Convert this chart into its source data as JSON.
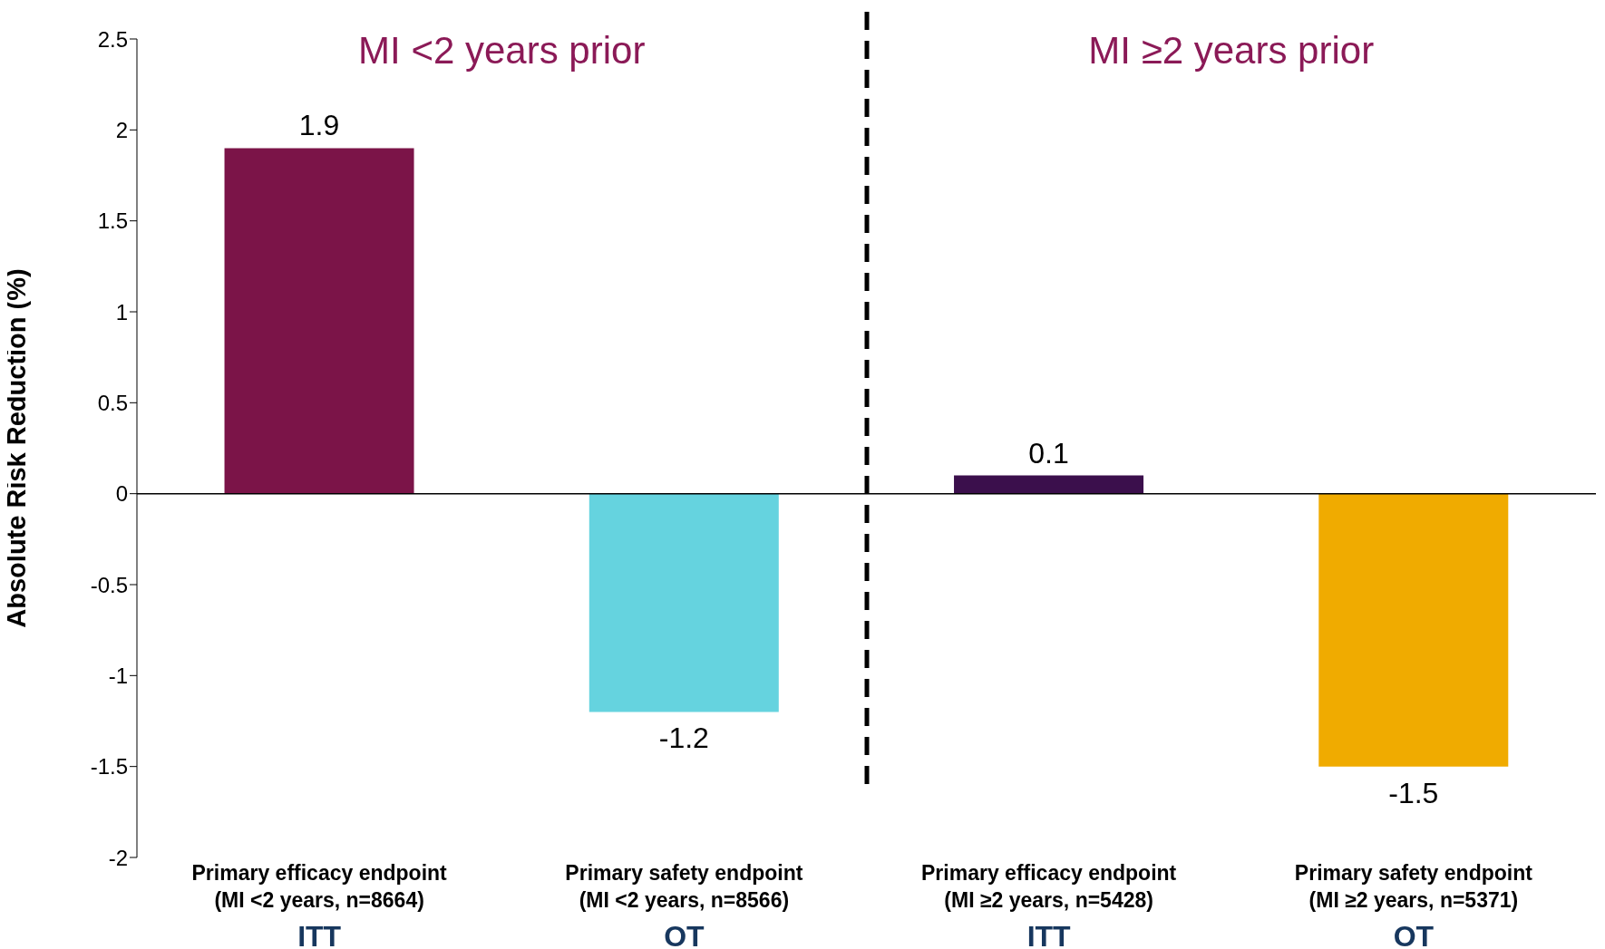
{
  "chart_data": {
    "type": "bar",
    "ylabel": "Absolute Risk Reduction (%)",
    "categories": [
      "Primary efficacy endpoint\n(MI <2 years, n=8664)\nITT",
      "Primary safety endpoint\n(MI <2 years, n=8566)\nOT",
      "Primary efficacy endpoint\n(MI ≥2 years, n=5428)\nITT",
      "Primary safety endpoint\n(MI ≥2 years, n=5371)\nOT"
    ],
    "values": [
      1.9,
      -1.2,
      0.1,
      -1.5
    ],
    "colors": [
      "#7b1448",
      "#65d3df",
      "#3b0f4c",
      "#f0ab00"
    ],
    "ylim": [
      -2,
      2.5
    ],
    "yticks": [
      -2,
      -1.5,
      -1,
      -0.5,
      0,
      0.5,
      1,
      1.5,
      2,
      2.5
    ],
    "legend": false,
    "data_labels": true,
    "annotations": [
      "MI <2 years prior",
      "MI ≥2 years prior"
    ]
  }
}
